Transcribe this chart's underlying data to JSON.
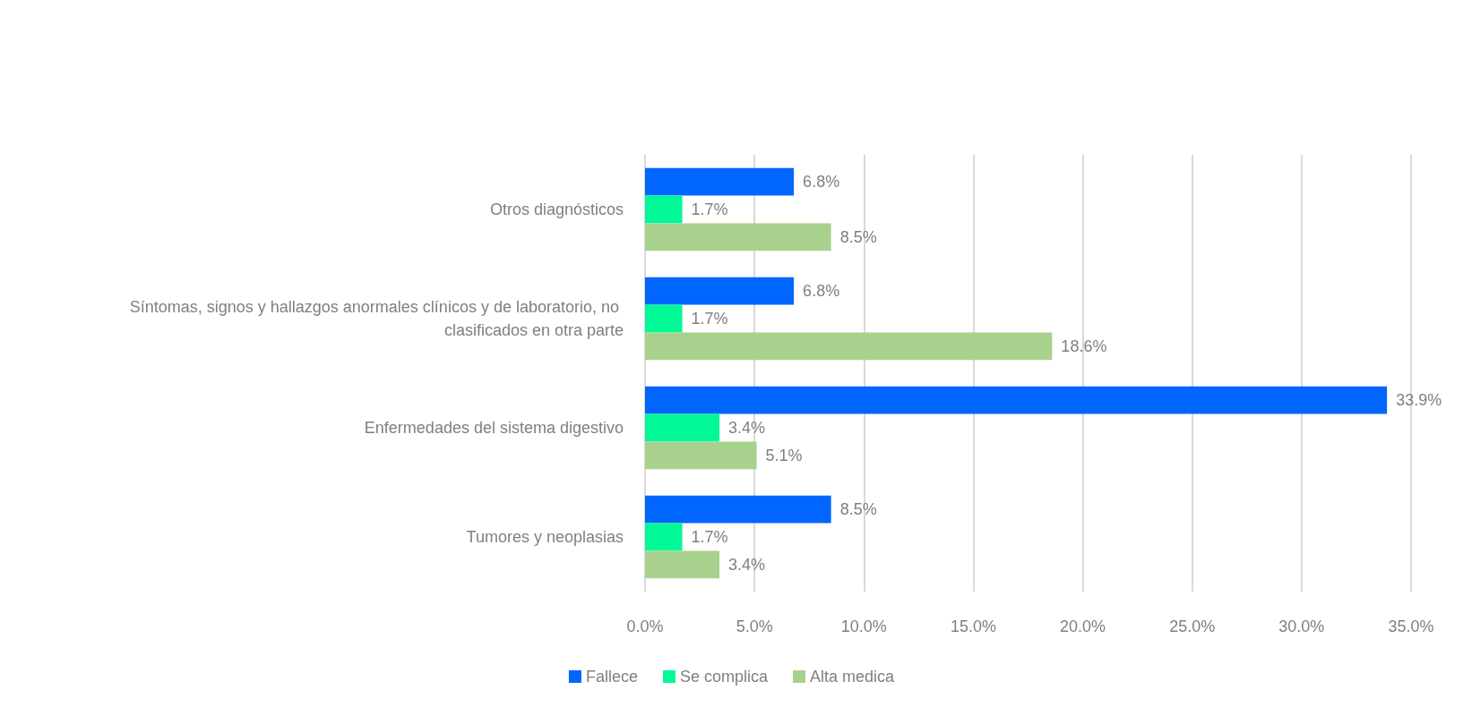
{
  "chart_data": {
    "type": "bar",
    "orientation": "horizontal",
    "categories": [
      "Otros diagnósticos",
      "Síntomas, signos y hallazgos anormales clínicos y de laboratorio, no clasificados en otra parte",
      "Enfermedades del sistema digestivo",
      "Tumores y neoplasias"
    ],
    "series": [
      {
        "name": "Fallece",
        "color": "#0066ff",
        "values": [
          6.8,
          6.8,
          33.9,
          8.5
        ],
        "value_labels": [
          "6.8%",
          "6.8%",
          "33.9%",
          "8.5%"
        ]
      },
      {
        "name": "Se complica",
        "color": "#00f996",
        "values": [
          1.7,
          1.7,
          3.4,
          1.7
        ],
        "value_labels": [
          "1.7%",
          "1.7%",
          "3.4%",
          "1.7%"
        ]
      },
      {
        "name": "Alta medica",
        "color": "#a9d18e",
        "values": [
          8.5,
          18.6,
          5.1,
          3.4
        ],
        "value_labels": [
          "8.5%",
          "18.6%",
          "5.1%",
          "3.4%"
        ]
      }
    ],
    "xlim": [
      0,
      35
    ],
    "xticks": [
      {
        "value": 0,
        "label": "0.0%"
      },
      {
        "value": 5,
        "label": "5.0%"
      },
      {
        "value": 10,
        "label": "10.0%"
      },
      {
        "value": 15,
        "label": "15.0%"
      },
      {
        "value": 20,
        "label": "20.0%"
      },
      {
        "value": 25,
        "label": "25.0%"
      },
      {
        "value": 30,
        "label": "30.0%"
      },
      {
        "value": 35,
        "label": "35.0%"
      }
    ],
    "grid": "x",
    "legend": "bottom"
  }
}
